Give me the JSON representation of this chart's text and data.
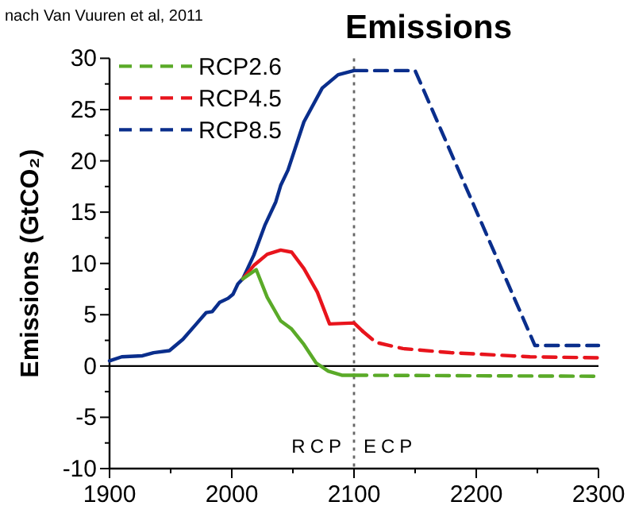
{
  "chart_data": {
    "type": "line",
    "title": "Emissions",
    "ylabel": "Emissions (GtCO₂)",
    "annotations": [
      "nach Van Vuuren et al, 2011",
      "RCP",
      "ECP"
    ],
    "xlim": [
      1900,
      2300
    ],
    "xticks": [
      1900,
      {
        "value": 1950,
        "label": null
      },
      2000,
      {
        "value": 2050,
        "label": null
      },
      2100,
      {
        "value": 2150,
        "label": null
      },
      2200,
      {
        "value": 2250,
        "label": null
      },
      2300
    ],
    "ylim": [
      -10,
      30
    ],
    "yticks": [
      -10,
      {
        "value": -7.5,
        "label": null
      },
      -5,
      {
        "value": -2.5,
        "label": null
      },
      0,
      {
        "value": 2.5,
        "label": null
      },
      5,
      {
        "value": 7.5,
        "label": null
      },
      10,
      {
        "value": 12.5,
        "label": null
      },
      15,
      {
        "value": 17.5,
        "label": null
      },
      20,
      {
        "value": 22.5,
        "label": null
      },
      25,
      {
        "value": 27.5,
        "label": null
      },
      30
    ],
    "grid": false,
    "legend": "top left",
    "marker": "none",
    "ref_lines": [
      {
        "axis": "y",
        "value": 0,
        "color": "#000000",
        "line_style": "solid"
      },
      {
        "axis": "x",
        "value": 2100,
        "color": "#666666",
        "line_style": "dotted"
      }
    ],
    "series": [
      {
        "color": "#0a2e8c",
        "line_style": "solid",
        "x": [
          1900,
          1910,
          1927,
          1936,
          1949,
          1960,
          1971,
          1979,
          1984,
          1990,
          1997,
          2001,
          2005,
          2009,
          2018,
          2027,
          2036,
          2040,
          2046,
          2059,
          2074,
          2087,
          2100
        ],
        "values": [
          0.5,
          0.9,
          1.0,
          1.3,
          1.5,
          2.6,
          4.1,
          5.2,
          5.3,
          6.2,
          6.6,
          7.0,
          8.0,
          8.5,
          10.8,
          13.7,
          16,
          17.6,
          19.1,
          23.8,
          27.1,
          28.4,
          28.8
        ]
      },
      {
        "color": "#e8141c",
        "line_style": "solid",
        "x": [
          2009,
          2018,
          2029,
          2040,
          2049,
          2059,
          2070,
          2080,
          2100,
          2107
        ],
        "values": [
          8.5,
          9.8,
          10.9,
          11.3,
          11.1,
          9.5,
          7.2,
          4.1,
          4.2,
          3.4
        ]
      },
      {
        "color": "#5aaa28",
        "line_style": "solid",
        "x": [
          2009,
          2020,
          2029,
          2040,
          2049,
          2059,
          2069,
          2079,
          2090,
          2100
        ],
        "values": [
          8.5,
          9.4,
          6.7,
          4.4,
          3.6,
          2.1,
          0.3,
          -0.5,
          -0.9,
          -0.9
        ]
      },
      {
        "name": "RCP2.6",
        "color": "#5aaa28",
        "line_style": "dashed",
        "x": [
          2100,
          2300
        ],
        "values": [
          -0.9,
          -1.0
        ]
      },
      {
        "name": "RCP4.5",
        "color": "#e8141c",
        "line_style": "dashed",
        "x": [
          2107,
          2118,
          2140,
          2179,
          2244,
          2300
        ],
        "values": [
          3.4,
          2.3,
          1.7,
          1.3,
          0.9,
          0.8
        ]
      },
      {
        "name": "RCP8.5",
        "color": "#0a2e8c",
        "line_style": "dashed",
        "x": [
          2100,
          2150,
          2248,
          2300
        ],
        "values": [
          28.8,
          28.8,
          2.0,
          2.0
        ]
      }
    ]
  }
}
